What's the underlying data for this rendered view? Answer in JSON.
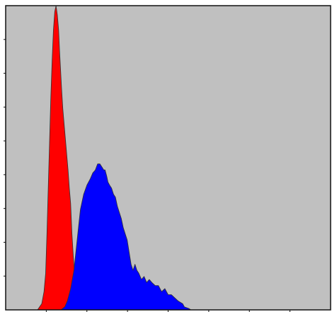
{
  "chart_data": {
    "type": "area",
    "title": "",
    "xlabel": "",
    "ylabel": "",
    "grid": false,
    "legend": "none",
    "xlim": [
      0,
      100
    ],
    "ylim": [
      0,
      100
    ],
    "x_tick_count": 8,
    "y_tick_count": 9,
    "colors": {
      "plot_background": "#c0c0c0",
      "frame": "#111111"
    },
    "series": [
      {
        "color": "#ff0000",
        "x": [
          9.8,
          11.1,
          11.8,
          12.3,
          12.7,
          13.1,
          13.5,
          13.9,
          14.3,
          14.7,
          15.1,
          15.5,
          15.9,
          16.3,
          16.6,
          16.9,
          17.2,
          17.6,
          18.0,
          18.4,
          18.8,
          19.2,
          19.6,
          20.0,
          20.4,
          20.8,
          21.2,
          21.6,
          22.0,
          22.5,
          23.0
        ],
        "y": [
          0,
          2,
          6,
          12,
          25,
          40,
          55,
          70,
          82,
          92,
          98,
          100,
          97,
          92,
          85,
          79,
          73,
          66,
          61,
          56,
          51,
          46,
          40,
          35,
          25,
          18,
          12,
          8,
          4,
          1,
          0
        ]
      },
      {
        "color": "#0000ff",
        "x": [
          17.0,
          18.2,
          19.0,
          20.0,
          21.0,
          22.0,
          23.0,
          24.0,
          25.0,
          26.0,
          26.8,
          27.6,
          28.3,
          29.0,
          29.6,
          30.2,
          30.6,
          31.1,
          31.5,
          32.0,
          32.6,
          33.2,
          33.8,
          34.4,
          35.0,
          35.6,
          36.2,
          36.8,
          37.4,
          38.0,
          38.6,
          39.2,
          39.8,
          40.4,
          41.0,
          41.8,
          42.6,
          43.4,
          44.2,
          45.0,
          46.0,
          47.0,
          48.0,
          49.0,
          50.0,
          51.0,
          52.0,
          53.0,
          54.5,
          55.0,
          56.5,
          57.0
        ],
        "y": [
          0,
          1,
          3,
          7,
          13,
          23,
          33,
          38,
          41,
          43,
          45,
          46,
          48,
          48,
          47,
          46,
          46,
          44,
          42,
          41,
          40,
          38,
          37,
          34,
          32,
          30,
          27,
          25,
          23,
          19,
          15,
          13,
          15,
          13,
          12,
          10,
          11,
          9,
          10,
          9,
          8,
          8,
          6,
          7,
          5,
          5,
          4,
          3,
          2,
          1,
          0.4,
          0
        ]
      }
    ]
  }
}
